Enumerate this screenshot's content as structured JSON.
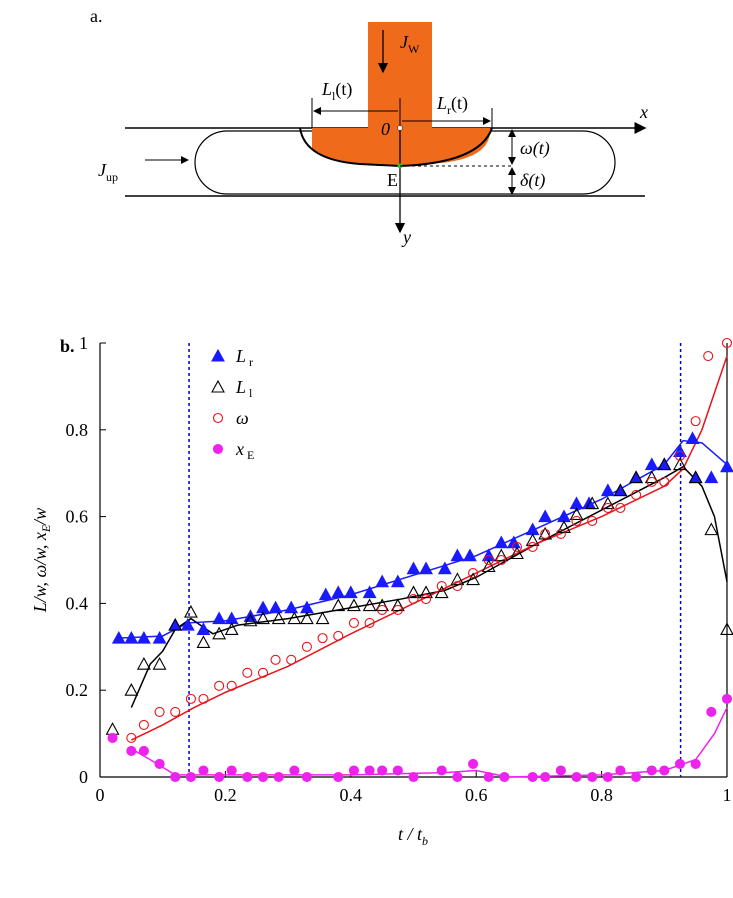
{
  "panel_a": {
    "label": "a.",
    "Jw": {
      "base": "J",
      "sub": "W"
    },
    "Ll": {
      "base": "L",
      "sub": "l",
      "rest": "(t)"
    },
    "Lr": {
      "base": "L",
      "sub": "r",
      "rest": "(t)"
    },
    "x": "x",
    "origin": "0",
    "omega": "ω(t)",
    "Jup": {
      "base": "J",
      "sub": "up"
    },
    "E": "E",
    "delta": "δ(t)",
    "y": "y"
  },
  "chart_data": {
    "type": "scatter",
    "panel_label": "b.",
    "xlabel": {
      "pre": "t / t",
      "sub": "b"
    },
    "ylabel": {
      "pre": "L/w, ω/w, x",
      "sub": "E",
      "post": "/w"
    },
    "xlim": [
      0,
      1
    ],
    "ylim": [
      0,
      1
    ],
    "xticks": [
      0,
      0.2,
      0.4,
      0.6,
      0.8,
      1
    ],
    "yticks": [
      0,
      0.2,
      0.4,
      0.6,
      0.8,
      1
    ],
    "vlines": [
      0.142,
      0.926
    ],
    "vline_color": "#0000cc",
    "series": [
      {
        "name": {
          "base": "L",
          "sub": "r"
        },
        "type": "scatter",
        "marker": "triangle",
        "filled": true,
        "color": "#1a1aff",
        "x": [
          0.03,
          0.05,
          0.07,
          0.095,
          0.12,
          0.14,
          0.165,
          0.19,
          0.21,
          0.24,
          0.26,
          0.28,
          0.305,
          0.33,
          0.36,
          0.38,
          0.4,
          0.43,
          0.45,
          0.475,
          0.5,
          0.52,
          0.55,
          0.57,
          0.59,
          0.62,
          0.64,
          0.66,
          0.69,
          0.71,
          0.74,
          0.76,
          0.78,
          0.81,
          0.83,
          0.855,
          0.88,
          0.9,
          0.925,
          0.945,
          0.95,
          0.975,
          1.0
        ],
        "values": [
          0.32,
          0.32,
          0.32,
          0.32,
          0.35,
          0.35,
          0.34,
          0.365,
          0.365,
          0.37,
          0.39,
          0.39,
          0.39,
          0.39,
          0.42,
          0.425,
          0.425,
          0.425,
          0.45,
          0.45,
          0.48,
          0.48,
          0.48,
          0.51,
          0.51,
          0.51,
          0.54,
          0.54,
          0.57,
          0.6,
          0.6,
          0.63,
          0.63,
          0.66,
          0.66,
          0.69,
          0.72,
          0.72,
          0.75,
          0.78,
          0.69,
          0.69,
          0.715
        ]
      },
      {
        "name": {
          "base": "L",
          "sub": "l"
        },
        "type": "scatter",
        "marker": "triangle",
        "filled": false,
        "color": "#000000",
        "x": [
          0.02,
          0.05,
          0.07,
          0.095,
          0.12,
          0.145,
          0.165,
          0.19,
          0.21,
          0.24,
          0.26,
          0.285,
          0.31,
          0.33,
          0.355,
          0.38,
          0.405,
          0.43,
          0.45,
          0.475,
          0.5,
          0.52,
          0.545,
          0.57,
          0.595,
          0.62,
          0.64,
          0.665,
          0.69,
          0.71,
          0.74,
          0.76,
          0.785,
          0.81,
          0.83,
          0.855,
          0.88,
          0.9,
          0.925,
          0.95,
          0.975,
          1.0
        ],
        "values": [
          0.11,
          0.2,
          0.26,
          0.26,
          0.35,
          0.38,
          0.31,
          0.33,
          0.34,
          0.36,
          0.365,
          0.365,
          0.365,
          0.365,
          0.365,
          0.395,
          0.395,
          0.395,
          0.395,
          0.395,
          0.425,
          0.425,
          0.425,
          0.455,
          0.455,
          0.485,
          0.51,
          0.515,
          0.545,
          0.56,
          0.575,
          0.605,
          0.63,
          0.63,
          0.66,
          0.69,
          0.69,
          0.72,
          0.72,
          0.69,
          0.57,
          0.34
        ]
      },
      {
        "name": {
          "base": "ω"
        },
        "type": "scatter",
        "marker": "circle",
        "filled": false,
        "color": "#e8141a",
        "x": [
          0.05,
          0.07,
          0.095,
          0.12,
          0.145,
          0.165,
          0.19,
          0.21,
          0.235,
          0.26,
          0.28,
          0.305,
          0.33,
          0.355,
          0.38,
          0.405,
          0.43,
          0.45,
          0.475,
          0.5,
          0.52,
          0.545,
          0.57,
          0.595,
          0.62,
          0.64,
          0.665,
          0.69,
          0.71,
          0.735,
          0.76,
          0.785,
          0.81,
          0.83,
          0.855,
          0.88,
          0.9,
          0.925,
          0.95,
          0.97,
          1.0
        ],
        "values": [
          0.09,
          0.12,
          0.15,
          0.15,
          0.18,
          0.18,
          0.21,
          0.21,
          0.24,
          0.24,
          0.27,
          0.27,
          0.3,
          0.32,
          0.325,
          0.355,
          0.355,
          0.385,
          0.385,
          0.41,
          0.41,
          0.44,
          0.44,
          0.47,
          0.5,
          0.5,
          0.53,
          0.53,
          0.56,
          0.56,
          0.59,
          0.59,
          0.62,
          0.62,
          0.65,
          0.68,
          0.68,
          0.74,
          0.82,
          0.97,
          1.0
        ]
      },
      {
        "name": {
          "base": "x",
          "sub": "E"
        },
        "type": "scatter",
        "marker": "circle",
        "filled": true,
        "color": "#ee22ee",
        "x": [
          0.02,
          0.05,
          0.07,
          0.095,
          0.12,
          0.145,
          0.165,
          0.19,
          0.21,
          0.235,
          0.26,
          0.285,
          0.31,
          0.33,
          0.38,
          0.405,
          0.43,
          0.45,
          0.475,
          0.5,
          0.545,
          0.57,
          0.595,
          0.62,
          0.645,
          0.69,
          0.71,
          0.735,
          0.76,
          0.785,
          0.81,
          0.83,
          0.855,
          0.88,
          0.9,
          0.925,
          0.95,
          0.975,
          1.0
        ],
        "values": [
          0.09,
          0.06,
          0.06,
          0.03,
          0.0,
          0.0,
          0.015,
          0.0,
          0.015,
          0.0,
          0.0,
          0.0,
          0.015,
          0.0,
          0.0,
          0.015,
          0.015,
          0.015,
          0.015,
          0.0,
          0.015,
          0.0,
          0.03,
          0.0,
          0.0,
          0.0,
          0.0,
          0.015,
          0.0,
          0.0,
          0.0,
          0.015,
          0.0,
          0.015,
          0.015,
          0.03,
          0.03,
          0.15,
          0.18
        ]
      },
      {
        "type": "line",
        "color": "#1a1aff",
        "x": [
          0.03,
          0.1,
          0.14,
          0.2,
          0.3,
          0.4,
          0.5,
          0.6,
          0.7,
          0.8,
          0.9,
          0.93,
          0.96,
          1.0
        ],
        "values": [
          0.32,
          0.325,
          0.355,
          0.36,
          0.385,
          0.42,
          0.465,
          0.51,
          0.575,
          0.64,
          0.72,
          0.775,
          0.77,
          0.72
        ]
      },
      {
        "type": "line",
        "color": "#000000",
        "x": [
          0.05,
          0.08,
          0.1,
          0.12,
          0.145,
          0.18,
          0.22,
          0.3,
          0.4,
          0.48,
          0.55,
          0.6,
          0.7,
          0.8,
          0.9,
          0.93,
          0.96,
          0.98,
          1.0
        ],
        "values": [
          0.16,
          0.26,
          0.29,
          0.34,
          0.365,
          0.33,
          0.35,
          0.365,
          0.39,
          0.41,
          0.43,
          0.46,
          0.54,
          0.615,
          0.69,
          0.715,
          0.67,
          0.6,
          0.45
        ]
      },
      {
        "type": "line",
        "color": "#e8141a",
        "x": [
          0.05,
          0.1,
          0.15,
          0.2,
          0.3,
          0.4,
          0.5,
          0.6,
          0.7,
          0.8,
          0.9,
          0.93,
          0.96,
          1.0
        ],
        "values": [
          0.085,
          0.12,
          0.16,
          0.195,
          0.255,
          0.33,
          0.4,
          0.47,
          0.54,
          0.6,
          0.67,
          0.71,
          0.8,
          0.97
        ]
      },
      {
        "type": "line",
        "color": "#ee22ee",
        "x": [
          0.05,
          0.08,
          0.12,
          0.2,
          0.4,
          0.55,
          0.6,
          0.65,
          0.8,
          0.9,
          0.95,
          0.98,
          1.0
        ],
        "values": [
          0.065,
          0.04,
          0.005,
          0.005,
          0.005,
          0.01,
          0.015,
          0.0,
          0.005,
          0.015,
          0.04,
          0.1,
          0.16
        ]
      }
    ]
  }
}
